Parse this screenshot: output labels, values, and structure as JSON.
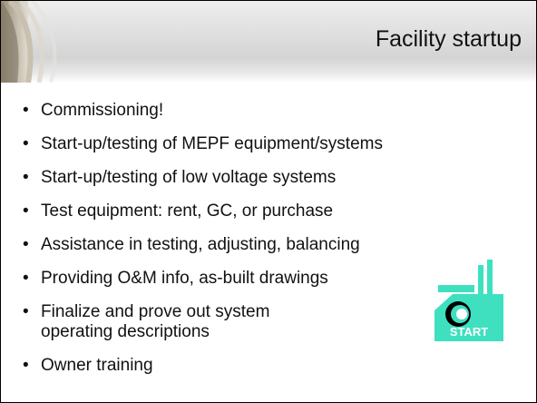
{
  "title": "Facility startup",
  "bullets": [
    "Commissioning!",
    "Start-up/testing of MEPF equipment/systems",
    "Start-up/testing of low voltage systems",
    "Test equipment: rent, GC, or purchase",
    "Assistance in testing, adjusting, balancing",
    "Providing O&M info, as-built drawings",
    [
      "Finalize and prove out system",
      "operating descriptions"
    ],
    "Owner training"
  ],
  "icon": {
    "label": "START"
  }
}
